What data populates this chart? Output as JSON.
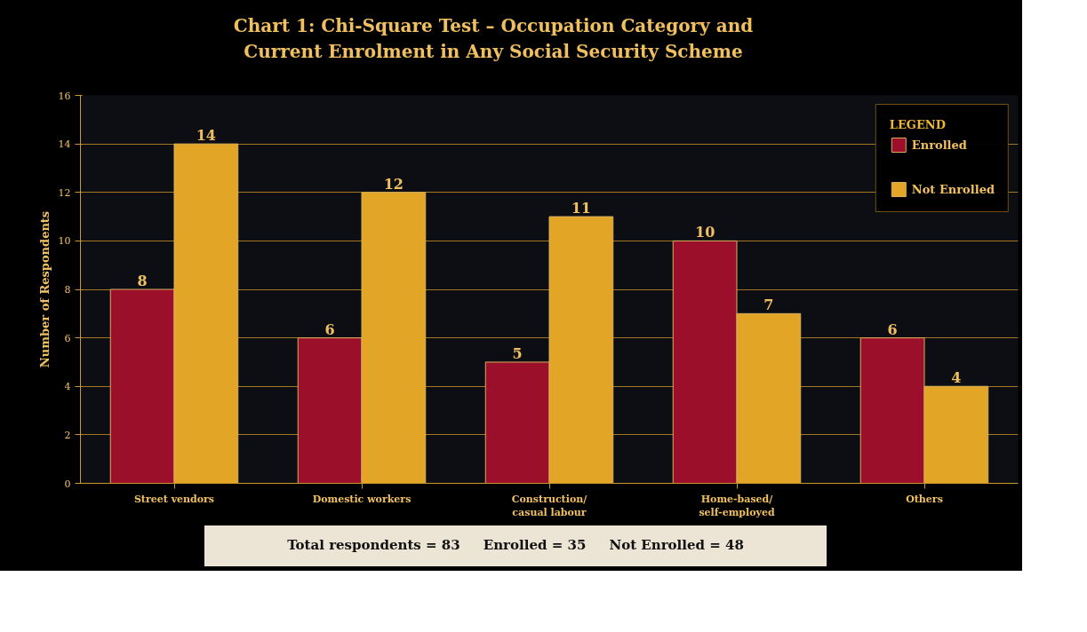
{
  "chart_data": {
    "type": "bar",
    "title": "Chart 1: Chi-Square Test – Occupation Category and\nCurrent Enrolment in Any Social Security Scheme",
    "ylabel": "Number of Respondents",
    "categories": [
      "Street vendors",
      "Domestic workers",
      "Construction/\ncasual labour",
      "Home-based/\nself-employed",
      "Others"
    ],
    "series": [
      {
        "name": "Enrolled",
        "color": "#9c0f2a",
        "values": [
          8,
          6,
          5,
          10,
          6
        ]
      },
      {
        "name": "Not Enrolled",
        "color": "#e2a526",
        "values": [
          14,
          12,
          11,
          7,
          4
        ]
      }
    ],
    "ylim": [
      0,
      16
    ],
    "yticks": [
      0,
      2,
      4,
      6,
      8,
      10,
      12,
      14,
      16
    ],
    "grid": "y",
    "legend": "top right",
    "legend_title": "LEGEND",
    "data_labels": true,
    "annotations": [
      "Total respondents = 83     Enrolled = 35     Not Enrolled = 48"
    ]
  }
}
